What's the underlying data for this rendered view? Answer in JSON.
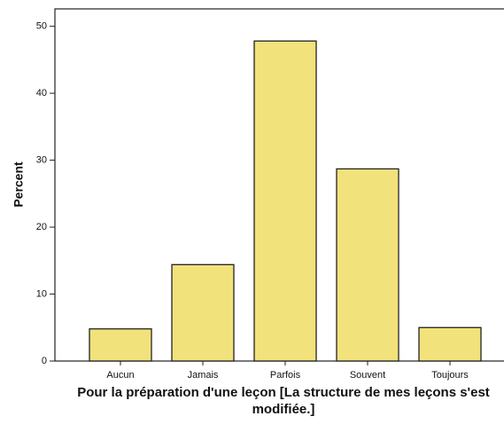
{
  "chart_data": {
    "type": "bar",
    "ylabel": "Percent",
    "xlabel": "Pour la préparation d'une leçon [La structure de mes leçons s'est modifiée.]",
    "categories": [
      "Aucun",
      "Jamais",
      "Parfois",
      "Souvent",
      "Toujours"
    ],
    "values": [
      4.8,
      14.4,
      47.8,
      28.7,
      5.0
    ],
    "color": "#f2e27c",
    "ylim": [
      0,
      52.6
    ],
    "yticks": [
      0,
      10,
      20,
      30,
      40,
      50
    ],
    "grid": false
  }
}
